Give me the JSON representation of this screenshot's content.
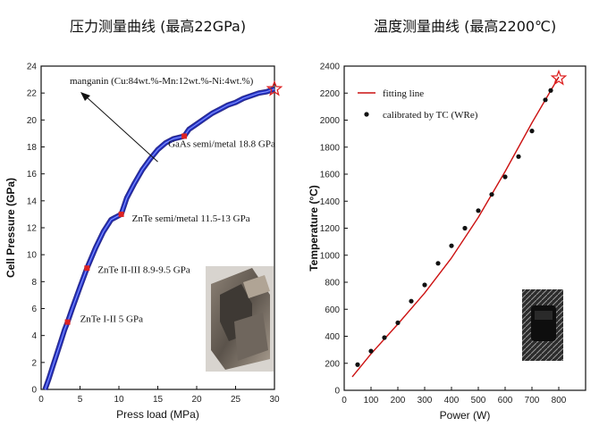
{
  "titles": {
    "left": "压力测量曲线 (最高22GPa)",
    "right": "温度测量曲线 (最高2200℃)"
  },
  "chart_data": [
    {
      "type": "line",
      "title": "压力测量曲线 (最高22GPa)",
      "xlabel": "Press load (MPa)",
      "ylabel": "Cell Pressure (GPa)",
      "xlim": [
        0,
        30
      ],
      "ylim": [
        0,
        24
      ],
      "xticks": [
        0,
        5,
        10,
        15,
        20,
        25,
        30
      ],
      "yticks": [
        0,
        2,
        4,
        6,
        8,
        10,
        12,
        14,
        16,
        18,
        20,
        22,
        24
      ],
      "grid": false,
      "curve_color": "#2233cc",
      "marker_color": "#dd2222",
      "series": [
        {
          "values": [
            [
              0.5,
              0
            ],
            [
              1,
              0.8
            ],
            [
              1.5,
              1.7
            ],
            [
              2,
              2.6
            ],
            [
              2.5,
              3.5
            ],
            [
              3,
              4.4
            ],
            [
              3.4,
              5.0
            ],
            [
              4,
              6.0
            ],
            [
              5,
              7.6
            ],
            [
              5.9,
              9.0
            ],
            [
              7,
              10.5
            ],
            [
              8,
              11.7
            ],
            [
              9,
              12.6
            ],
            [
              10.3,
              13.0
            ],
            [
              11,
              14.2
            ],
            [
              12,
              15.3
            ],
            [
              13,
              16.3
            ],
            [
              14,
              17.1
            ],
            [
              15,
              17.8
            ],
            [
              16,
              18.3
            ],
            [
              17,
              18.6
            ],
            [
              18.4,
              18.8
            ],
            [
              19,
              19.3
            ],
            [
              20,
              19.7
            ],
            [
              21,
              20.1
            ],
            [
              22,
              20.5
            ],
            [
              23,
              20.8
            ],
            [
              24,
              21.1
            ],
            [
              25,
              21.3
            ],
            [
              26,
              21.6
            ],
            [
              27,
              21.8
            ],
            [
              28,
              22.0
            ],
            [
              29,
              22.1
            ],
            [
              30,
              22.3
            ]
          ]
        }
      ],
      "calibration_points": [
        {
          "x": 3.4,
          "y": 5.0,
          "label": "ZnTe I-II 5 GPa"
        },
        {
          "x": 5.9,
          "y": 9.0,
          "label": "ZnTe II-III 8.9-9.5 GPa"
        },
        {
          "x": 10.3,
          "y": 13.0,
          "label": "ZnTe semi/metal 11.5-13 GPa"
        },
        {
          "x": 18.4,
          "y": 18.8,
          "label": "GaAs semi/metal 18.8 GPa"
        }
      ],
      "star_point": {
        "x": 30,
        "y": 22.3
      },
      "annotation": {
        "text": "manganin (Cu:84wt.%-Mn:12wt.%-Ni:4wt.%)",
        "arrow_to": {
          "x": 15,
          "y": 16.9
        }
      }
    },
    {
      "type": "scatter",
      "title": "温度测量曲线 (最高2200℃)",
      "xlabel": "Power (W)",
      "ylabel": "Temperature (°C)",
      "xlim": [
        0,
        900
      ],
      "ylim": [
        0,
        2400
      ],
      "xticks": [
        0,
        100,
        200,
        300,
        400,
        500,
        600,
        700,
        800
      ],
      "yticks": [
        0,
        200,
        400,
        600,
        800,
        1000,
        1200,
        1400,
        1600,
        1800,
        2000,
        2200,
        2400
      ],
      "grid": false,
      "legend_position": "top-left",
      "series": [
        {
          "name": "fitting line",
          "color": "#cc1111",
          "values": [
            [
              30,
              100
            ],
            [
              100,
              270
            ],
            [
              200,
              490
            ],
            [
              300,
              720
            ],
            [
              400,
              980
            ],
            [
              500,
              1280
            ],
            [
              600,
              1620
            ],
            [
              700,
              1980
            ],
            [
              800,
              2320
            ]
          ]
        },
        {
          "name": "calibrated by TC (WRe)",
          "color": "#111111",
          "values": [
            [
              50,
              190
            ],
            [
              100,
              290
            ],
            [
              150,
              390
            ],
            [
              200,
              500
            ],
            [
              250,
              660
            ],
            [
              300,
              780
            ],
            [
              350,
              940
            ],
            [
              400,
              1070
            ],
            [
              450,
              1200
            ],
            [
              500,
              1330
            ],
            [
              550,
              1450
            ],
            [
              600,
              1580
            ],
            [
              650,
              1730
            ],
            [
              700,
              1920
            ],
            [
              750,
              2150
            ],
            [
              770,
              2220
            ]
          ]
        }
      ],
      "star_point": {
        "x": 800,
        "y": 2310
      }
    }
  ]
}
